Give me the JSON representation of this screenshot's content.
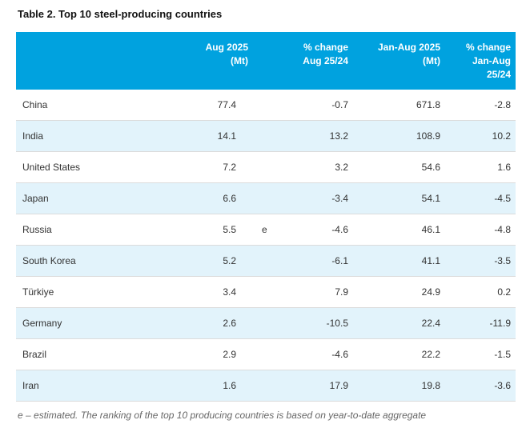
{
  "title": "Table 2. Top 10 steel-producing countries",
  "table": {
    "header": {
      "country": "",
      "aug": {
        "line1": "Aug 2025",
        "line2": "(Mt)"
      },
      "pct_aug": {
        "line1": "% change",
        "line2": "Aug 25/24"
      },
      "jan_aug": {
        "line1": "Jan-Aug 2025",
        "line2": "(Mt)"
      },
      "pct_jan_aug": {
        "line1": "% change",
        "line2": "Jan-Aug",
        "line3": "25/24"
      }
    },
    "rows": [
      {
        "country": "China",
        "aug_mt": "77.4",
        "flag": "",
        "pct_aug": "-0.7",
        "jan_aug_mt": "671.8",
        "pct_jan_aug": "-2.8"
      },
      {
        "country": "India",
        "aug_mt": "14.1",
        "flag": "",
        "pct_aug": "13.2",
        "jan_aug_mt": "108.9",
        "pct_jan_aug": "10.2"
      },
      {
        "country": "United States",
        "aug_mt": "7.2",
        "flag": "",
        "pct_aug": "3.2",
        "jan_aug_mt": "54.6",
        "pct_jan_aug": "1.6"
      },
      {
        "country": "Japan",
        "aug_mt": "6.6",
        "flag": "",
        "pct_aug": "-3.4",
        "jan_aug_mt": "54.1",
        "pct_jan_aug": "-4.5"
      },
      {
        "country": "Russia",
        "aug_mt": "5.5",
        "flag": "e",
        "pct_aug": "-4.6",
        "jan_aug_mt": "46.1",
        "pct_jan_aug": "-4.8"
      },
      {
        "country": "South Korea",
        "aug_mt": "5.2",
        "flag": "",
        "pct_aug": "-6.1",
        "jan_aug_mt": "41.1",
        "pct_jan_aug": "-3.5"
      },
      {
        "country": "Türkiye",
        "aug_mt": "3.4",
        "flag": "",
        "pct_aug": "7.9",
        "jan_aug_mt": "24.9",
        "pct_jan_aug": "0.2"
      },
      {
        "country": "Germany",
        "aug_mt": "2.6",
        "flag": "",
        "pct_aug": "-10.5",
        "jan_aug_mt": "22.4",
        "pct_jan_aug": "-11.9"
      },
      {
        "country": "Brazil",
        "aug_mt": "2.9",
        "flag": "",
        "pct_aug": "-4.6",
        "jan_aug_mt": "22.2",
        "pct_jan_aug": "-1.5"
      },
      {
        "country": "Iran",
        "aug_mt": "1.6",
        "flag": "",
        "pct_aug": "17.9",
        "jan_aug_mt": "19.8",
        "pct_jan_aug": "-3.6"
      }
    ]
  },
  "footnote": "e – estimated. The ranking of the top 10 producing countries is based on year-to-date aggregate",
  "colors": {
    "header_bg": "#00A2DF",
    "row_alt_bg": "#E2F3FB",
    "row_border": "#DBDBDB",
    "header_text": "#FFFFFF",
    "body_text": "#333333",
    "footnote_text": "#666666"
  }
}
